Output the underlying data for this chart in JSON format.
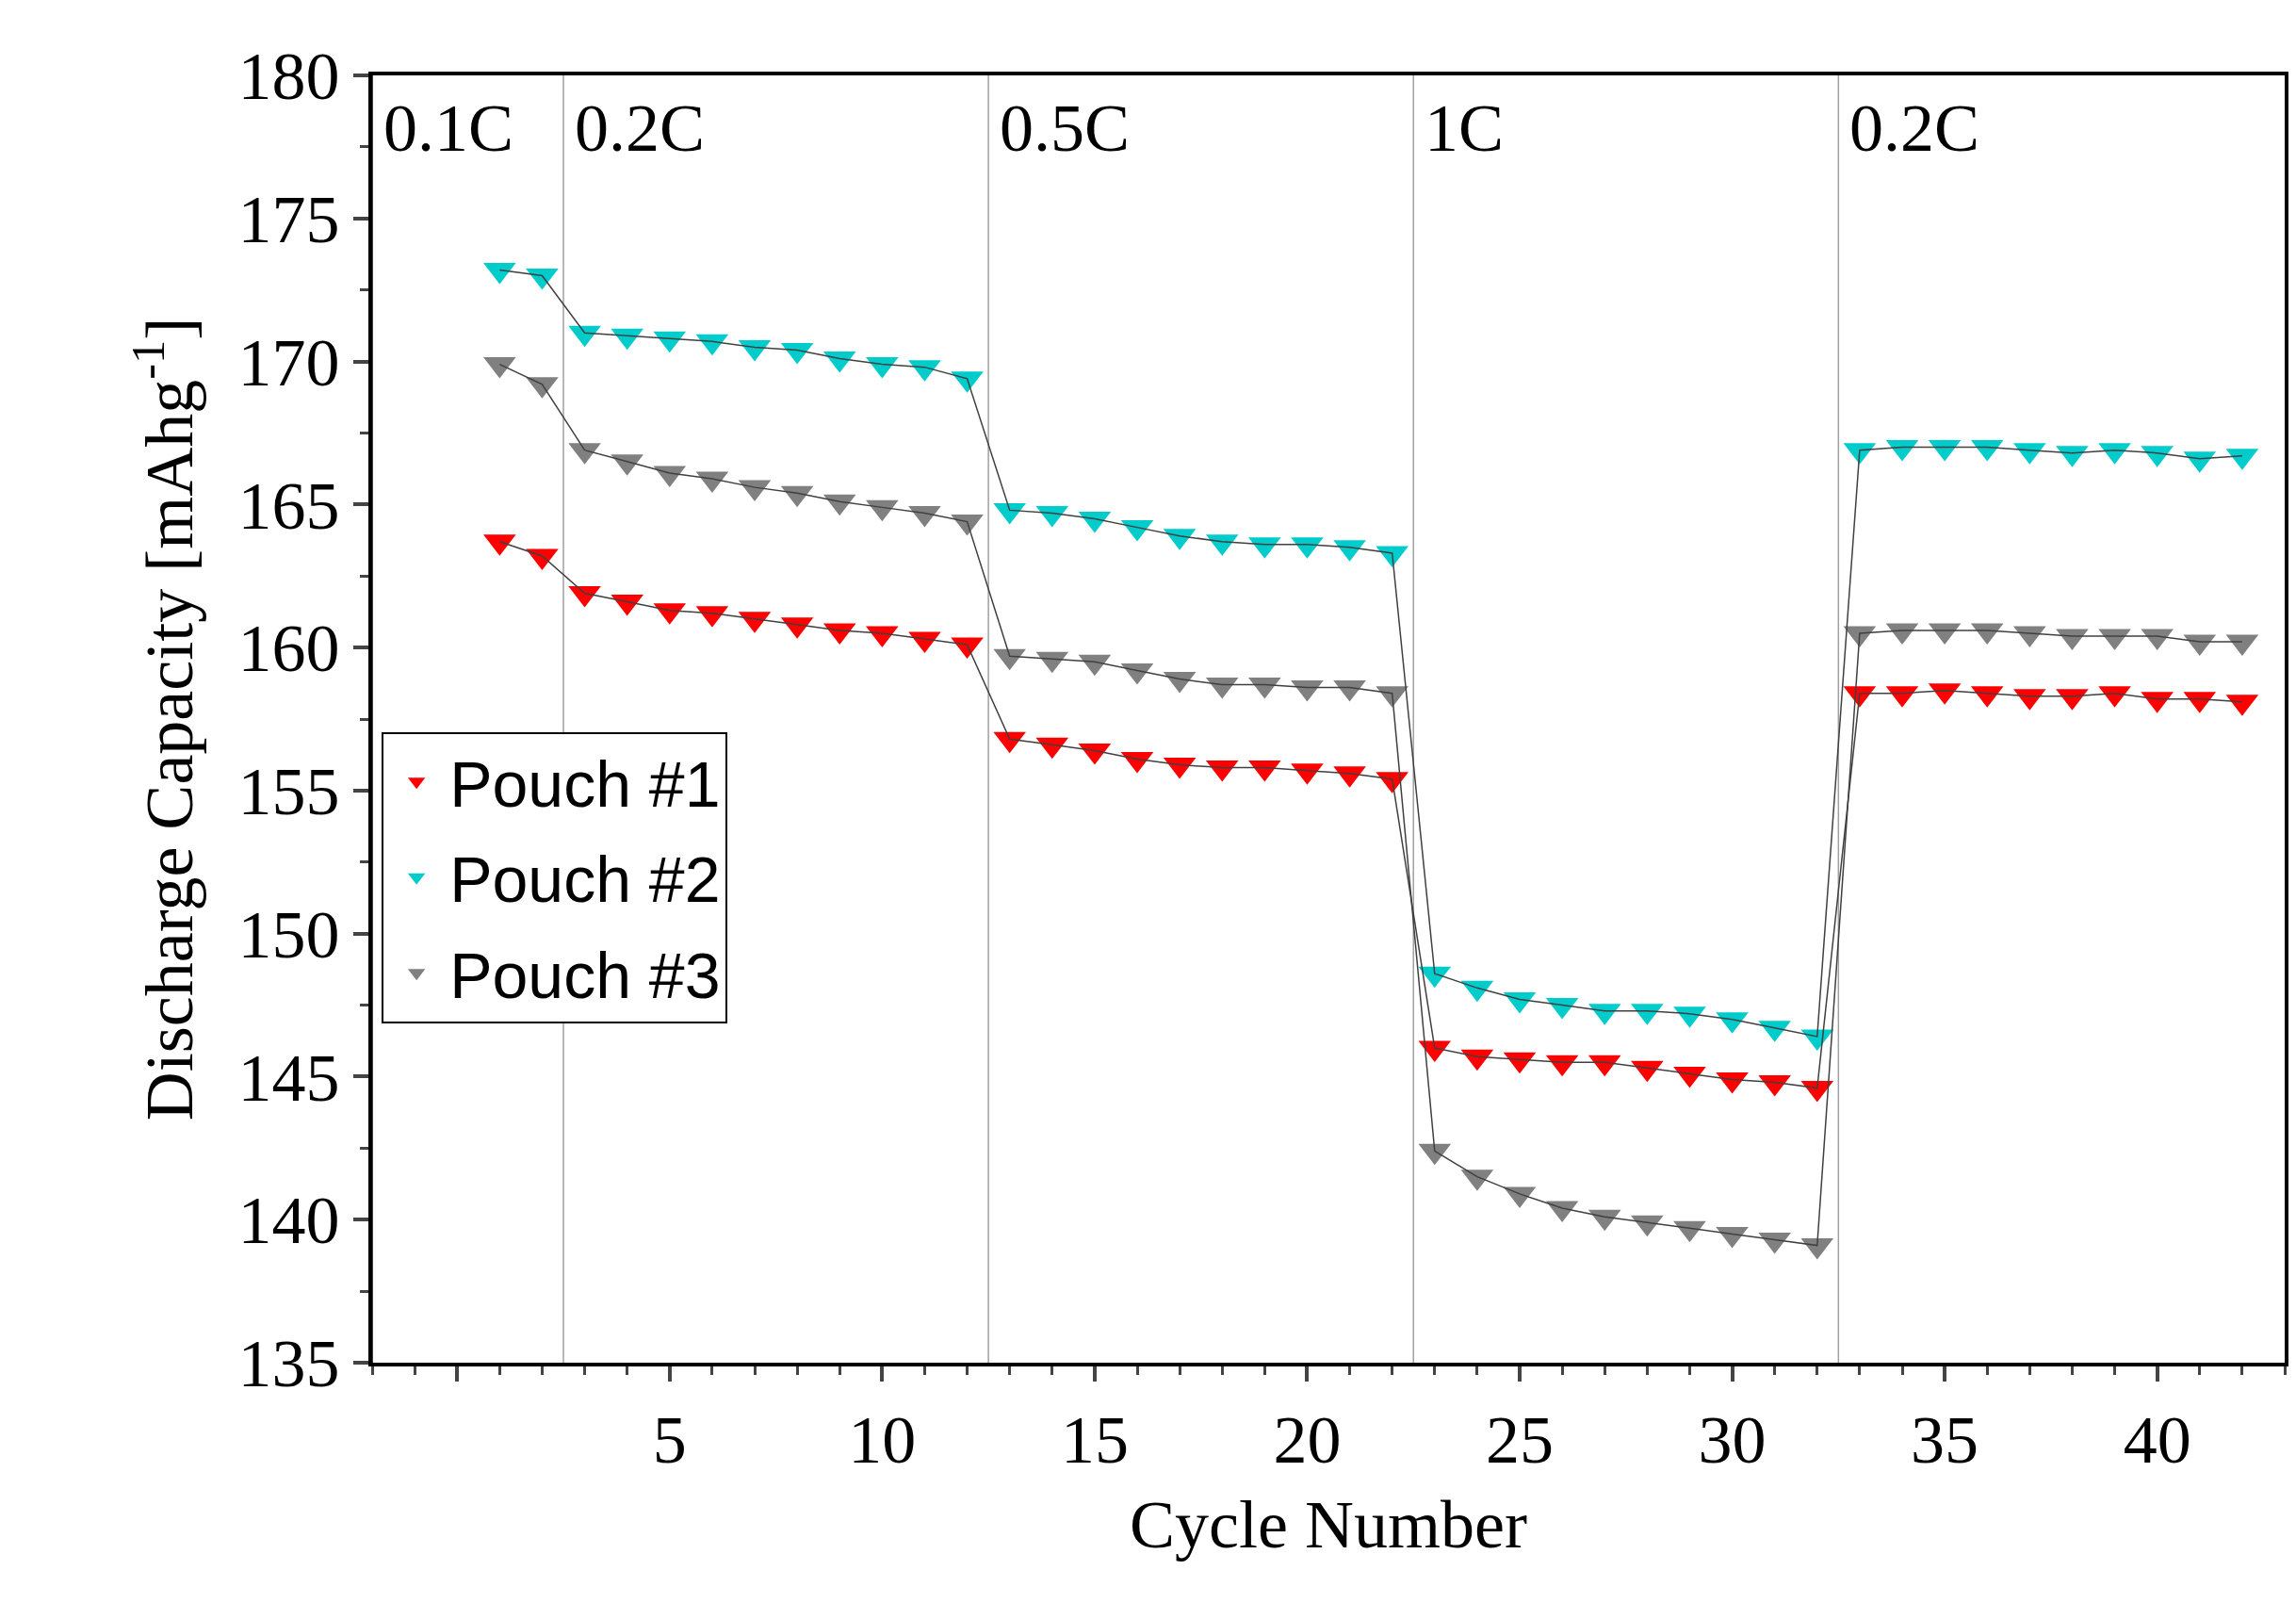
{
  "chart_data": {
    "type": "line",
    "xlabel": "Cycle Number",
    "ylabel": "Discharge Capacity [mAhg$^{-1}$]",
    "x": [
      1,
      2,
      3,
      4,
      5,
      6,
      7,
      8,
      9,
      10,
      11,
      12,
      13,
      14,
      15,
      16,
      17,
      18,
      19,
      20,
      21,
      22,
      23,
      24,
      25,
      26,
      27,
      28,
      29,
      30,
      31,
      32,
      33,
      34,
      35,
      36,
      37,
      38,
      39,
      40,
      41,
      42
    ],
    "series": [
      {
        "name": "Pouch #1",
        "color": "#ff0000",
        "values": [
          163.7,
          163.2,
          161.9,
          161.6,
          161.3,
          161.2,
          161.0,
          160.8,
          160.6,
          160.5,
          160.3,
          160.1,
          156.8,
          156.6,
          156.4,
          156.1,
          155.9,
          155.8,
          155.8,
          155.7,
          155.6,
          155.4,
          146.0,
          145.7,
          145.6,
          145.5,
          145.5,
          145.3,
          145.1,
          144.9,
          144.8,
          144.6,
          158.4,
          158.4,
          158.5,
          158.4,
          158.3,
          158.3,
          158.4,
          158.2,
          158.2,
          158.1
        ]
      },
      {
        "name": "Pouch #2",
        "color": "#00cccc",
        "values": [
          173.2,
          173.0,
          171.0,
          170.9,
          170.8,
          170.7,
          170.5,
          170.4,
          170.1,
          169.9,
          169.8,
          169.4,
          164.8,
          164.7,
          164.5,
          164.2,
          163.9,
          163.7,
          163.6,
          163.6,
          163.5,
          163.3,
          148.6,
          148.1,
          147.7,
          147.5,
          147.3,
          147.3,
          147.2,
          147.0,
          146.7,
          146.4,
          166.9,
          167.0,
          167.0,
          167.0,
          166.9,
          166.8,
          166.9,
          166.8,
          166.6,
          166.7
        ]
      },
      {
        "name": "Pouch #3",
        "color": "#808080",
        "values": [
          169.9,
          169.2,
          166.9,
          166.5,
          166.1,
          165.9,
          165.6,
          165.4,
          165.1,
          164.9,
          164.7,
          164.4,
          159.7,
          159.6,
          159.5,
          159.2,
          158.9,
          158.7,
          158.7,
          158.6,
          158.6,
          158.4,
          142.4,
          141.5,
          140.9,
          140.4,
          140.1,
          139.9,
          139.7,
          139.5,
          139.3,
          139.1,
          160.5,
          160.6,
          160.6,
          160.6,
          160.5,
          160.4,
          160.4,
          160.4,
          160.2,
          160.2
        ]
      }
    ],
    "xlim": [
      -2,
      43
    ],
    "xticks": [
      {
        "value": 0,
        "label": null
      },
      5,
      10,
      15,
      20,
      25,
      30,
      35,
      40
    ],
    "ylim": [
      135,
      180
    ],
    "yticks": [
      135,
      140,
      145,
      150,
      155,
      160,
      165,
      170,
      175,
      180
    ],
    "ref_lines": [
      {
        "axis": "x",
        "value": -2,
        "color": "#000000",
        "label": "0.1C"
      },
      {
        "axis": "x",
        "value": 2.5,
        "color": "#a0a0a0",
        "label": "0.2C"
      },
      {
        "axis": "x",
        "value": 12.5,
        "color": "#a0a0a0",
        "label": "0.5C"
      },
      {
        "axis": "x",
        "value": 22.5,
        "color": "#a0a0a0",
        "label": "1C"
      },
      {
        "axis": "x",
        "value": 32.5,
        "color": "#a0a0a0",
        "label": "0.2C"
      }
    ],
    "grid": false,
    "legend": "left",
    "marker": "triangle",
    "line_style": "solid"
  }
}
